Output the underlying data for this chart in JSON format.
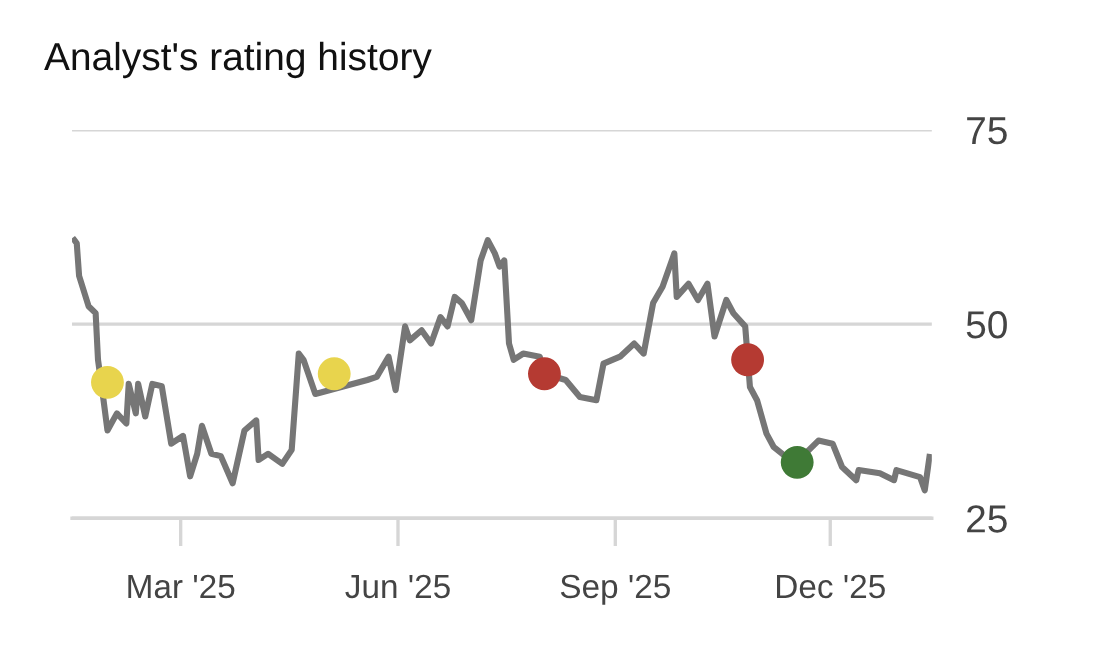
{
  "chart_data": {
    "type": "line",
    "title": "Analyst's rating history",
    "series": [
      {
        "color": "#767676",
        "x": [
          "2025-01-15",
          "2025-01-16",
          "2025-01-17",
          "2025-01-21",
          "2025-01-24",
          "2025-01-25",
          "2025-01-27",
          "2025-01-29",
          "2025-02-02",
          "2025-02-06",
          "2025-02-07",
          "2025-02-10",
          "2025-02-11",
          "2025-02-14",
          "2025-02-17",
          "2025-02-21",
          "2025-02-25",
          "2025-03-02",
          "2025-03-05",
          "2025-03-08",
          "2025-03-10",
          "2025-03-14",
          "2025-03-18",
          "2025-03-23",
          "2025-03-28",
          "2025-04-02",
          "2025-04-03",
          "2025-04-07",
          "2025-04-13",
          "2025-04-17",
          "2025-04-20",
          "2025-04-22",
          "2025-04-27",
          "2025-05-19",
          "2025-05-23",
          "2025-05-28",
          "2025-05-31",
          "2025-06-04",
          "2025-06-06",
          "2025-06-11",
          "2025-06-15",
          "2025-06-19",
          "2025-06-22",
          "2025-06-25",
          "2025-06-28",
          "2025-07-02",
          "2025-07-06",
          "2025-07-09",
          "2025-07-12",
          "2025-07-14",
          "2025-07-16",
          "2025-07-18",
          "2025-07-20",
          "2025-07-24",
          "2025-07-31",
          "2025-08-02",
          "2025-08-11",
          "2025-08-17",
          "2025-08-24",
          "2025-08-27",
          "2025-09-03",
          "2025-09-09",
          "2025-09-13",
          "2025-09-17",
          "2025-09-21",
          "2025-09-26",
          "2025-09-27",
          "2025-10-02",
          "2025-10-06",
          "2025-10-10",
          "2025-10-13",
          "2025-10-18",
          "2025-10-21",
          "2025-10-26",
          "2025-10-28",
          "2025-10-31",
          "2025-11-04",
          "2025-11-07",
          "2025-11-16",
          "2025-11-26",
          "2025-12-02",
          "2025-12-06",
          "2025-12-12",
          "2025-12-13",
          "2025-12-22",
          "2025-12-28",
          "2025-12-29",
          "2026-01-08",
          "2026-01-10",
          "2026-01-12"
        ],
        "values": [
          60.8,
          60.4,
          56.2,
          52.3,
          51.4,
          45.4,
          41,
          36.3,
          38.5,
          37.2,
          42.3,
          38.5,
          42.3,
          38.1,
          42.3,
          42,
          34.6,
          35.6,
          30.4,
          33.3,
          36.9,
          33.3,
          33,
          29.5,
          36.3,
          37.6,
          32.5,
          33.3,
          32,
          33.8,
          46.2,
          45.4,
          41,
          42.8,
          43.2,
          45.8,
          41.5,
          49.7,
          47.9,
          49.2,
          47.5,
          50.9,
          49.7,
          53.5,
          52.7,
          50.5,
          58.2,
          60.8,
          59.1,
          57.4,
          58.2,
          47.5,
          45.4,
          46.2,
          45.8,
          43.6,
          42.8,
          40.6,
          40.2,
          44.9,
          45.8,
          47.5,
          46.2,
          52.7,
          54.8,
          59.1,
          53.5,
          55.2,
          53.1,
          55.2,
          48.4,
          53.1,
          51.4,
          49.7,
          41.9,
          40.2,
          35.9,
          34.2,
          32,
          35,
          34.6,
          31.6,
          29.9,
          31.2,
          30.8,
          29.9,
          31.2,
          30.3,
          28.6,
          32.9
        ]
      },
      {
        "type": "scatter",
        "marker": "circle",
        "x": [
          "2025-01-29",
          "2025-05-05",
          "2025-08-02",
          "2025-10-27",
          "2025-11-17"
        ],
        "values": [
          42.5,
          43.6,
          43.6,
          45.4,
          32.2
        ],
        "colors": [
          "#e8d44d",
          "#e8d44d",
          "#b53a32",
          "#b53a32",
          "#3f7a36"
        ]
      }
    ],
    "xlim": [
      "2025-01-14",
      "2026-01-13"
    ],
    "xticks": [
      {
        "value": "2025-03-01",
        "label": "Mar '25"
      },
      {
        "value": "2025-06-01",
        "label": "Jun '25"
      },
      {
        "value": "2025-09-01",
        "label": "Sep '25"
      },
      {
        "value": "2025-12-01",
        "label": "Dec '25"
      }
    ],
    "ylim": [
      25,
      75
    ],
    "yticks": [
      25,
      50,
      75
    ],
    "grid": "y",
    "legend": false
  }
}
